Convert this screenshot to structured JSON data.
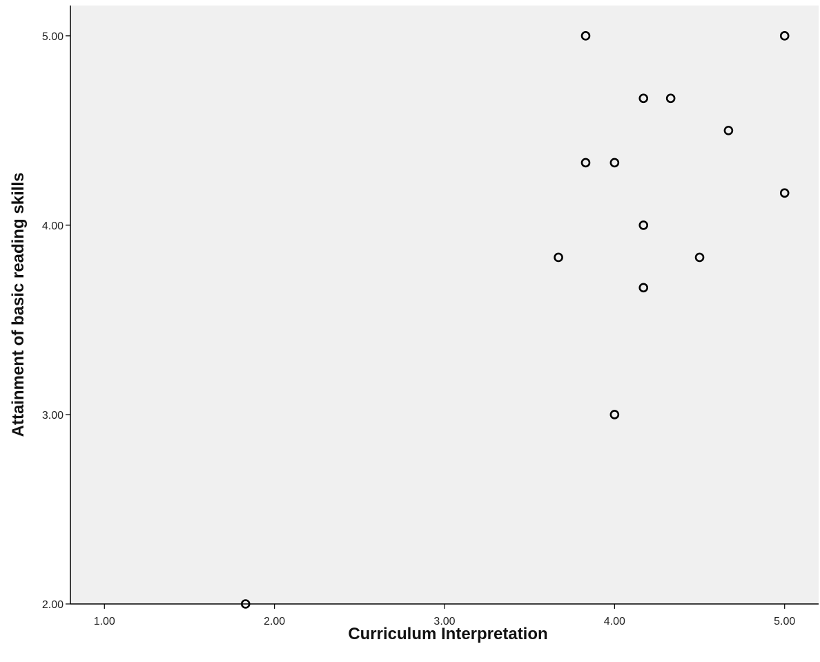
{
  "chart_data": {
    "type": "scatter",
    "title": "",
    "xlabel": "Curriculum Interpretation",
    "ylabel": "Attainment of basic reading skills",
    "xlim": [
      0.8,
      5.2
    ],
    "ylim": [
      2.0,
      5.16
    ],
    "x_ticks": [
      1.0,
      2.0,
      3.0,
      4.0,
      5.0
    ],
    "x_tick_labels": [
      "1.00",
      "2.00",
      "3.00",
      "4.00",
      "5.00"
    ],
    "y_ticks": [
      2.0,
      3.0,
      4.0,
      5.0
    ],
    "y_tick_labels": [
      "2.00",
      "3.00",
      "4.00",
      "5.00"
    ],
    "grid": false,
    "legend": "none",
    "plot_background": "#f0f0f0",
    "marker": "open-circle",
    "points": [
      {
        "x": 3.83,
        "y": 5.0
      },
      {
        "x": 5.0,
        "y": 5.0
      },
      {
        "x": 4.17,
        "y": 4.67
      },
      {
        "x": 4.33,
        "y": 4.67
      },
      {
        "x": 4.67,
        "y": 4.5
      },
      {
        "x": 3.83,
        "y": 4.33
      },
      {
        "x": 4.0,
        "y": 4.33
      },
      {
        "x": 5.0,
        "y": 4.17
      },
      {
        "x": 4.17,
        "y": 4.0
      },
      {
        "x": 3.67,
        "y": 3.83
      },
      {
        "x": 4.5,
        "y": 3.83
      },
      {
        "x": 4.17,
        "y": 3.67
      },
      {
        "x": 4.0,
        "y": 3.0
      },
      {
        "x": 1.83,
        "y": 2.0
      }
    ]
  }
}
